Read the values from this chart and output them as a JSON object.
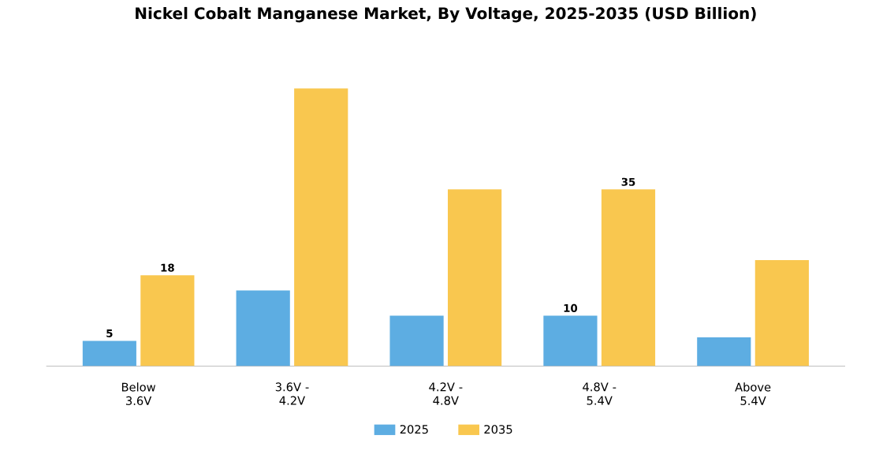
{
  "chart_data": {
    "type": "bar",
    "title": "Nickel Cobalt Manganese Market, By Voltage, 2025-2035 (USD Billion)",
    "categories": [
      "Below 3.6V",
      "3.6V - 4.2V",
      "4.2V - 4.8V",
      "4.8V - 5.4V",
      "Above 5.4V"
    ],
    "series": [
      {
        "name": "2025",
        "color": "#5dade2",
        "values": [
          5,
          15,
          10,
          10,
          5.7
        ],
        "value_labels": [
          "5",
          null,
          null,
          "10",
          null
        ]
      },
      {
        "name": "2035",
        "color": "#f9c74f",
        "values": [
          18,
          55,
          35,
          35,
          21
        ],
        "value_labels": [
          "18",
          null,
          null,
          "35",
          null
        ]
      }
    ],
    "legend": "bottom"
  }
}
